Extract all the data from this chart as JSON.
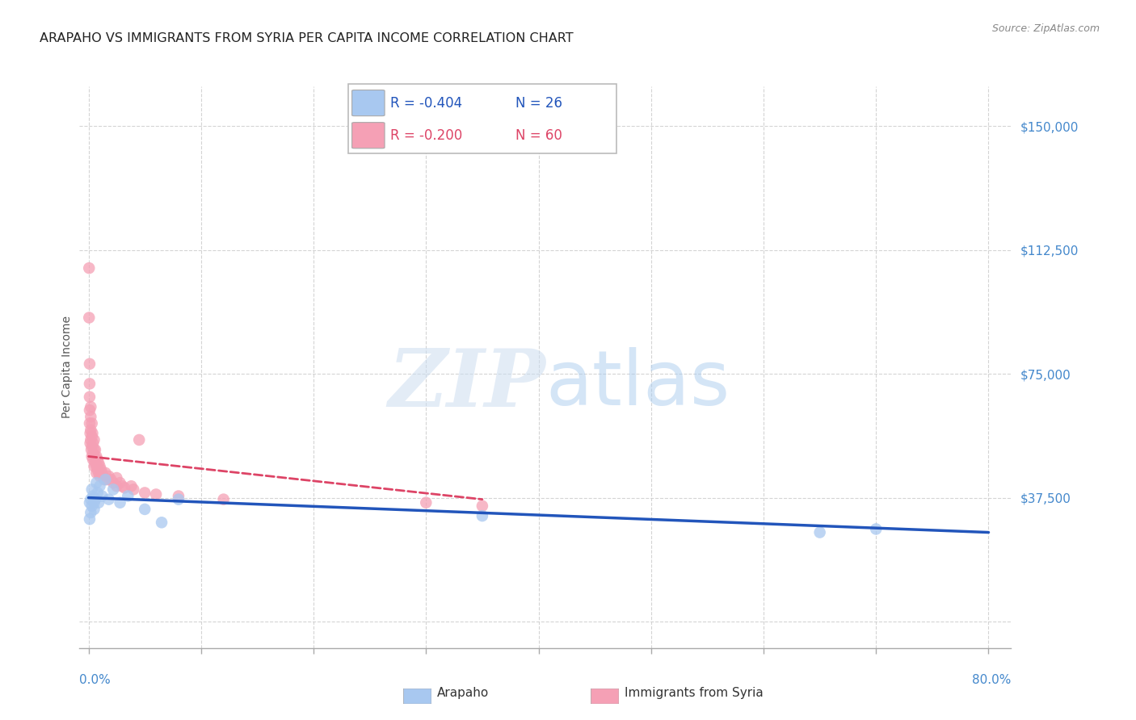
{
  "title": "ARAPAHO VS IMMIGRANTS FROM SYRIA PER CAPITA INCOME CORRELATION CHART",
  "source": "Source: ZipAtlas.com",
  "ylabel": "Per Capita Income",
  "yticks": [
    0,
    37500,
    75000,
    112500,
    150000
  ],
  "ytick_labels": [
    "",
    "$37,500",
    "$75,000",
    "$112,500",
    "$150,000"
  ],
  "ymax": 162000,
  "ymin": -8000,
  "xmin": -0.008,
  "xmax": 0.82,
  "background_color": "#ffffff",
  "grid_color": "#d0d0d0",
  "blue_color": "#a8c8f0",
  "pink_color": "#f5a0b5",
  "blue_line_color": "#2255bb",
  "pink_line_color": "#dd4466",
  "legend_blue_r": "R = -0.404",
  "legend_blue_n": "N = 26",
  "legend_pink_r": "R = -0.200",
  "legend_pink_n": "N = 60",
  "blue_label": "Arapaho",
  "pink_label": "Immigrants from Syria",
  "arapaho_x": [
    0.001,
    0.001,
    0.002,
    0.002,
    0.003,
    0.003,
    0.004,
    0.005,
    0.005,
    0.006,
    0.007,
    0.008,
    0.009,
    0.01,
    0.012,
    0.015,
    0.018,
    0.022,
    0.028,
    0.035,
    0.05,
    0.065,
    0.08,
    0.35,
    0.65,
    0.7
  ],
  "arapaho_y": [
    36000,
    31000,
    37000,
    33000,
    40000,
    35000,
    38000,
    36000,
    34000,
    37000,
    42000,
    39000,
    36000,
    41000,
    38000,
    43000,
    37000,
    40000,
    36000,
    38000,
    34000,
    30000,
    37000,
    32000,
    27000,
    28000
  ],
  "syria_x": [
    0.0005,
    0.0005,
    0.001,
    0.001,
    0.001,
    0.001,
    0.001,
    0.0015,
    0.0015,
    0.002,
    0.002,
    0.002,
    0.002,
    0.0025,
    0.003,
    0.003,
    0.003,
    0.003,
    0.0035,
    0.004,
    0.004,
    0.004,
    0.005,
    0.005,
    0.005,
    0.005,
    0.006,
    0.006,
    0.007,
    0.007,
    0.007,
    0.008,
    0.008,
    0.009,
    0.009,
    0.01,
    0.01,
    0.011,
    0.012,
    0.013,
    0.014,
    0.015,
    0.016,
    0.018,
    0.02,
    0.022,
    0.025,
    0.025,
    0.028,
    0.03,
    0.032,
    0.038,
    0.04,
    0.045,
    0.05,
    0.06,
    0.08,
    0.12,
    0.3,
    0.35
  ],
  "syria_y": [
    107000,
    92000,
    78000,
    72000,
    68000,
    64000,
    60000,
    57000,
    54000,
    65000,
    62000,
    58000,
    55000,
    52000,
    60000,
    56000,
    53000,
    50000,
    57000,
    54000,
    51000,
    49000,
    55000,
    52000,
    50000,
    47000,
    52000,
    48000,
    50000,
    47000,
    45000,
    49000,
    46000,
    48000,
    45000,
    47000,
    44000,
    46000,
    45000,
    44000,
    43000,
    45000,
    43000,
    44000,
    43000,
    42000,
    43500,
    41000,
    42000,
    41000,
    40500,
    41000,
    40000,
    55000,
    39000,
    38500,
    38000,
    37000,
    36000,
    35000
  ],
  "blue_line_x": [
    0.0,
    0.8
  ],
  "blue_line_y": [
    37500,
    27000
  ],
  "pink_line_x": [
    0.0,
    0.35
  ],
  "pink_line_y": [
    50000,
    37000
  ]
}
